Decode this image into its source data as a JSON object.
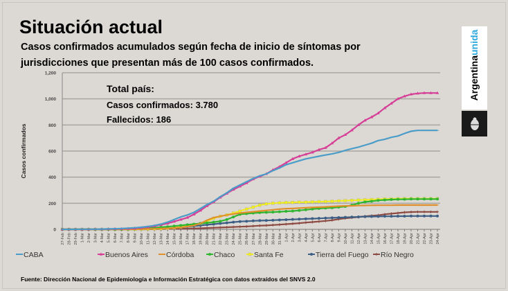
{
  "title": "Situación actual",
  "subtitle_line1": "Casos confirmados acumulados según fecha de inicio de síntomas por",
  "subtitle_line2": "jurisdicciones que presentan más de 100 casos confirmados.",
  "stats": {
    "heading": "Total país:",
    "confirmed": "Casos confirmados: 3.780",
    "deaths": "Fallecidos: 186"
  },
  "logo": {
    "word1": "Argentina",
    "word2": "unida"
  },
  "footer": "Fuente: Dirección Nacional de Epidemiología e Información Estratégica con datos extraídos del SNVS 2.0",
  "chart_data": {
    "type": "line",
    "ylabel": "Casos confirmados",
    "xlabel": "",
    "ylim": [
      0,
      1200
    ],
    "yticks": [
      0,
      200,
      400,
      600,
      800,
      1000,
      1200
    ],
    "ytick_labels": [
      "0",
      "200",
      "400",
      "600",
      "800",
      "1,000",
      "1,200"
    ],
    "grid": true,
    "legend_position": "bottom",
    "categories": [
      "27-Feb",
      "28-Feb",
      "29-Feb",
      "1-Mar",
      "2-Mar",
      "3-Mar",
      "4-Mar",
      "5-Mar",
      "6-Mar",
      "7-Mar",
      "8-Mar",
      "9-Mar",
      "10-Mar",
      "11-Mar",
      "12-Mar",
      "13-Mar",
      "14-Mar",
      "15-Mar",
      "16-Mar",
      "17-Mar",
      "18-Mar",
      "19-Mar",
      "20-Mar",
      "21-Mar",
      "22-Mar",
      "23-Mar",
      "24-Mar",
      "25-Mar",
      "26-Mar",
      "27-Mar",
      "28-Mar",
      "29-Mar",
      "30-Mar",
      "31-Mar",
      "1-Apr",
      "2-Apr",
      "3-Apr",
      "4-Apr",
      "5-Apr",
      "6-Apr",
      "7-Apr",
      "8-Apr",
      "9-Apr",
      "10-Apr",
      "11-Apr",
      "12-Apr",
      "13-Apr",
      "14-Apr",
      "15-Apr",
      "16-Apr",
      "17-Apr",
      "18-Apr",
      "19-Apr",
      "20-Apr",
      "21-Apr",
      "22-Apr",
      "23-Apr",
      "24-Apr"
    ],
    "series": [
      {
        "name": "CABA",
        "color": "#4a9cc9",
        "marker": "dash",
        "values": [
          0,
          0,
          0,
          1,
          1,
          1,
          2,
          3,
          4,
          6,
          9,
          12,
          16,
          22,
          30,
          40,
          55,
          75,
          95,
          110,
          130,
          160,
          190,
          215,
          250,
          280,
          315,
          340,
          365,
          390,
          410,
          425,
          450,
          470,
          495,
          510,
          525,
          540,
          550,
          560,
          570,
          578,
          590,
          605,
          618,
          630,
          645,
          660,
          680,
          690,
          705,
          715,
          735,
          752,
          758,
          758,
          758,
          758
        ]
      },
      {
        "name": "Buenos Aires",
        "color": "#d63f97",
        "marker": "triangle",
        "values": [
          0,
          0,
          0,
          0,
          0,
          1,
          1,
          2,
          3,
          4,
          6,
          8,
          12,
          18,
          25,
          35,
          45,
          60,
          75,
          90,
          115,
          145,
          180,
          210,
          245,
          275,
          305,
          330,
          355,
          385,
          405,
          425,
          455,
          480,
          510,
          540,
          560,
          575,
          590,
          610,
          625,
          660,
          700,
          725,
          760,
          800,
          835,
          860,
          890,
          930,
          965,
          1000,
          1020,
          1035,
          1042,
          1045,
          1045,
          1045
        ]
      },
      {
        "name": "Córdoba",
        "color": "#e0902a",
        "marker": "dash",
        "values": [
          0,
          0,
          0,
          0,
          0,
          0,
          0,
          0,
          0,
          0,
          0,
          1,
          2,
          3,
          4,
          6,
          8,
          10,
          15,
          22,
          30,
          45,
          70,
          90,
          100,
          110,
          118,
          125,
          130,
          135,
          140,
          145,
          150,
          155,
          158,
          160,
          163,
          165,
          168,
          170,
          172,
          175,
          178,
          180,
          180,
          182,
          183,
          184,
          185,
          185,
          185,
          186,
          186,
          186,
          186,
          186,
          186,
          186
        ]
      },
      {
        "name": "Chaco",
        "color": "#2fb52f",
        "marker": "circle",
        "values": [
          0,
          0,
          0,
          0,
          0,
          0,
          0,
          0,
          0,
          0,
          1,
          3,
          5,
          8,
          12,
          16,
          20,
          25,
          30,
          35,
          40,
          45,
          50,
          55,
          62,
          75,
          95,
          115,
          120,
          125,
          128,
          130,
          132,
          135,
          138,
          140,
          145,
          150,
          155,
          160,
          163,
          165,
          170,
          175,
          185,
          200,
          210,
          215,
          222,
          225,
          228,
          230,
          230,
          232,
          232,
          232,
          232,
          232
        ]
      },
      {
        "name": "Santa Fe",
        "color": "#f2ef1c",
        "marker": "square",
        "values": [
          0,
          0,
          0,
          0,
          0,
          0,
          0,
          0,
          0,
          0,
          0,
          0,
          1,
          2,
          3,
          5,
          8,
          12,
          18,
          25,
          35,
          45,
          60,
          85,
          100,
          110,
          125,
          140,
          155,
          170,
          185,
          195,
          200,
          203,
          205,
          206,
          208,
          208,
          210,
          212,
          213,
          215,
          218,
          220,
          222,
          224,
          226,
          228,
          230,
          232,
          233,
          234,
          235,
          235,
          235,
          235,
          235,
          235
        ]
      },
      {
        "name": "Tierra del Fuego",
        "color": "#3d5f86",
        "marker": "circle",
        "values": [
          0,
          0,
          0,
          0,
          0,
          0,
          0,
          0,
          0,
          0,
          0,
          0,
          1,
          2,
          3,
          5,
          7,
          10,
          15,
          20,
          25,
          30,
          35,
          40,
          45,
          50,
          55,
          60,
          62,
          65,
          67,
          68,
          70,
          72,
          74,
          76,
          78,
          80,
          82,
          84,
          86,
          88,
          90,
          92,
          94,
          95,
          97,
          98,
          99,
          100,
          100,
          101,
          101,
          102,
          102,
          102,
          102,
          102
        ]
      },
      {
        "name": "Río Negro",
        "color": "#8c4a42",
        "marker": "plus",
        "values": [
          0,
          0,
          0,
          0,
          0,
          0,
          0,
          0,
          0,
          0,
          0,
          0,
          0,
          0,
          1,
          2,
          3,
          4,
          5,
          6,
          7,
          8,
          10,
          12,
          14,
          16,
          18,
          20,
          22,
          25,
          28,
          30,
          33,
          36,
          40,
          43,
          47,
          52,
          56,
          60,
          65,
          70,
          78,
          85,
          90,
          95,
          100,
          104,
          108,
          115,
          120,
          125,
          130,
          133,
          134,
          134,
          134,
          134
        ]
      }
    ]
  }
}
